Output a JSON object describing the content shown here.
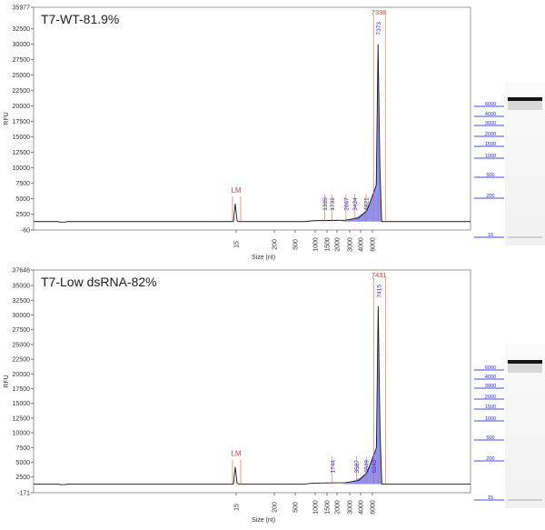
{
  "chart_data": [
    {
      "type": "line",
      "title": "T7-WT-81.9%",
      "ylabel": "RFU",
      "xlabel": "Size (nt)",
      "y_ticks": [
        "-60",
        "2500",
        "5000",
        "7500",
        "10000",
        "12500",
        "15000",
        "17500",
        "20000",
        "22500",
        "25000",
        "27500",
        "30000",
        "32500",
        "35977"
      ],
      "ylim": [
        -60,
        35977
      ],
      "x_ticks": [
        "15",
        "200",
        "500",
        "1000",
        "1500",
        "2000",
        "3000",
        "4000",
        "6000"
      ],
      "markers": {
        "lm_label": "LM",
        "peak_top_label": "7398",
        "peak_labels": [
          "1395",
          "1731",
          "2667",
          "3424",
          "4821",
          "7373"
        ]
      },
      "series": [
        {
          "values": {
            "baseline": 1300,
            "lm_peak": 4200,
            "main_peak": 30000
          }
        }
      ],
      "ladder": {
        "labels": [
          "6000",
          "4000",
          "3000",
          "2000",
          "1500",
          "1000",
          "500",
          "200",
          "15"
        ],
        "sample_band_nt": 7398
      }
    },
    {
      "type": "line",
      "title": "T7-Low dsRNA-82%",
      "ylabel": "RFU",
      "xlabel": "Size (nt)",
      "y_ticks": [
        "-171",
        "2500",
        "5000",
        "7500",
        "10000",
        "12500",
        "15000",
        "17500",
        "20000",
        "22500",
        "25000",
        "27500",
        "30000",
        "32500",
        "35000",
        "37646"
      ],
      "ylim": [
        -171,
        37646
      ],
      "x_ticks": [
        "15",
        "200",
        "500",
        "1000",
        "1500",
        "2000",
        "3000",
        "4000",
        "6000"
      ],
      "markers": {
        "lm_label": "LM",
        "peak_top_label": "7431",
        "peak_labels": [
          "1744",
          "3587",
          "4849",
          "6243",
          "7415"
        ]
      },
      "series": [
        {
          "values": {
            "baseline": 1300,
            "lm_peak": 4200,
            "main_peak": 31500
          }
        }
      ],
      "ladder": {
        "labels": [
          "6000",
          "4000",
          "3000",
          "2000",
          "1500",
          "1000",
          "500",
          "200",
          "15"
        ],
        "sample_band_nt": 7431
      }
    }
  ]
}
